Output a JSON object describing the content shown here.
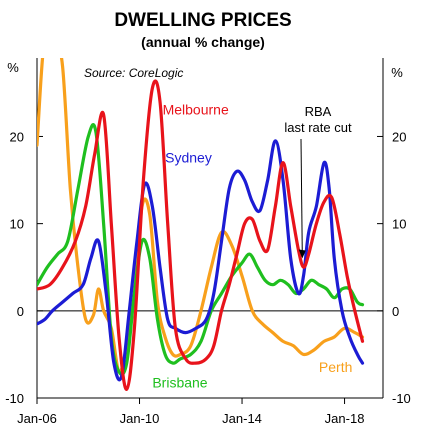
{
  "chart_data": {
    "type": "line",
    "title": "DWELLING PRICES",
    "subtitle": "(annual % change)",
    "left_unit": "%",
    "right_unit": "%",
    "source": "Source: CoreLogic",
    "ylim": [
      -10,
      29
    ],
    "y_ticks": [
      -10,
      0,
      10,
      20
    ],
    "y_tick_labels": [
      "-10",
      "0",
      "10",
      "20"
    ],
    "x_ticks": [
      2006,
      2010,
      2014,
      2018
    ],
    "x_tick_labels": [
      "Jan-06",
      "Jan-10",
      "Jan-14",
      "Jan-18"
    ],
    "xlim": [
      2006.0,
      2019.5
    ],
    "grid": "none",
    "reference_line": 0,
    "annotation": {
      "lines": [
        "RBA",
        "last rate cut"
      ],
      "x": 2016.35,
      "y": 6.0
    },
    "series": [
      {
        "name": "Melbourne",
        "color": "#e8131b",
        "x": [
          2006.0,
          2006.5,
          2007.0,
          2007.5,
          2007.9,
          2008.25,
          2008.6,
          2008.9,
          2009.2,
          2009.5,
          2009.8,
          2010.15,
          2010.5,
          2010.8,
          2011.1,
          2011.4,
          2011.8,
          2012.2,
          2012.6,
          2012.9,
          2013.2,
          2013.5,
          2013.8,
          2014.1,
          2014.4,
          2014.7,
          2015.0,
          2015.3,
          2015.6,
          2015.9,
          2016.2,
          2016.4,
          2016.6,
          2016.9,
          2017.2,
          2017.5,
          2017.8,
          2018.1,
          2018.4,
          2018.7
        ],
        "y": [
          2.5,
          3.0,
          5.0,
          8.0,
          12.0,
          18.0,
          22.5,
          10.0,
          -3.0,
          -9.0,
          -2.0,
          15.0,
          25.5,
          24.0,
          10.0,
          -2.0,
          -5.5,
          -6.0,
          -5.5,
          -4.0,
          0.0,
          3.0,
          6.5,
          10.0,
          10.5,
          8.0,
          7.0,
          12.0,
          17.0,
          12.0,
          7.0,
          5.0,
          6.5,
          10.0,
          12.5,
          13.0,
          9.0,
          4.0,
          0.0,
          -3.5
        ]
      },
      {
        "name": "Sydney",
        "color": "#1c1cd4",
        "x": [
          2006.0,
          2006.3,
          2006.6,
          2007.0,
          2007.4,
          2007.8,
          2008.1,
          2008.4,
          2008.7,
          2009.0,
          2009.3,
          2009.6,
          2009.9,
          2010.2,
          2010.5,
          2010.8,
          2011.1,
          2011.4,
          2011.8,
          2012.2,
          2012.6,
          2012.9,
          2013.2,
          2013.5,
          2013.8,
          2014.1,
          2014.4,
          2014.7,
          2015.0,
          2015.3,
          2015.6,
          2015.9,
          2016.2,
          2016.4,
          2016.6,
          2016.9,
          2017.2,
          2017.4,
          2017.6,
          2017.9,
          2018.2,
          2018.5,
          2018.7
        ],
        "y": [
          -1.5,
          -1.0,
          0.0,
          1.0,
          2.0,
          3.0,
          6.0,
          8.0,
          2.0,
          -6.0,
          -7.5,
          0.0,
          8.0,
          14.5,
          12.0,
          5.0,
          -1.0,
          -2.0,
          -2.5,
          -2.0,
          -1.0,
          2.0,
          8.0,
          14.0,
          16.0,
          15.0,
          12.5,
          11.5,
          15.0,
          19.5,
          15.0,
          6.0,
          2.0,
          4.0,
          9.0,
          12.0,
          17.0,
          14.0,
          6.0,
          0.0,
          -3.0,
          -5.0,
          -6.0
        ]
      },
      {
        "name": "Brisbane",
        "color": "#1fbf1f",
        "x": [
          2006.0,
          2006.4,
          2006.8,
          2007.2,
          2007.6,
          2008.0,
          2008.3,
          2008.6,
          2008.9,
          2009.2,
          2009.5,
          2009.8,
          2010.1,
          2010.4,
          2010.7,
          2011.0,
          2011.3,
          2011.6,
          2012.0,
          2012.4,
          2012.8,
          2013.2,
          2013.6,
          2014.0,
          2014.3,
          2014.6,
          2014.9,
          2015.2,
          2015.5,
          2015.8,
          2016.1,
          2016.4,
          2016.7,
          2017.0,
          2017.3,
          2017.6,
          2017.9,
          2018.2,
          2018.5,
          2018.7
        ],
        "y": [
          3.0,
          5.0,
          6.5,
          8.0,
          14.0,
          20.0,
          20.5,
          10.0,
          -3.0,
          -7.0,
          -6.0,
          2.0,
          8.0,
          6.0,
          -1.0,
          -5.0,
          -6.0,
          -5.5,
          -5.0,
          -3.5,
          0.0,
          2.0,
          4.0,
          5.5,
          6.5,
          5.0,
          3.5,
          3.0,
          3.5,
          3.0,
          2.0,
          2.5,
          3.5,
          3.0,
          2.5,
          1.5,
          2.5,
          2.5,
          1.0,
          0.7
        ]
      },
      {
        "name": "Perth",
        "color": "#f8a01c",
        "x": [
          2006.0,
          2006.25,
          2006.5,
          2006.75,
          2007.0,
          2007.3,
          2007.6,
          2007.9,
          2008.2,
          2008.4,
          2008.6,
          2008.9,
          2009.2,
          2009.5,
          2009.8,
          2010.1,
          2010.4,
          2010.7,
          2011.0,
          2011.3,
          2011.6,
          2012.0,
          2012.4,
          2012.8,
          2013.2,
          2013.6,
          2014.0,
          2014.4,
          2014.8,
          2015.2,
          2015.6,
          2016.0,
          2016.4,
          2016.8,
          2017.2,
          2017.6,
          2018.0,
          2018.4,
          2018.7
        ],
        "y": [
          19.0,
          30.0,
          30.0,
          30.0,
          28.0,
          14.0,
          5.0,
          -1.0,
          -0.5,
          2.5,
          0.0,
          -2.0,
          -7.0,
          -4.0,
          2.0,
          12.0,
          11.0,
          1.0,
          -3.0,
          -5.0,
          -5.0,
          -4.0,
          0.0,
          5.0,
          9.0,
          7.5,
          4.0,
          0.0,
          -1.5,
          -2.5,
          -3.5,
          -4.0,
          -5.0,
          -4.5,
          -3.5,
          -3.0,
          -2.0,
          -2.5,
          -3.0
        ]
      }
    ],
    "series_labels": [
      {
        "series": "Melbourne",
        "x": 2010.9,
        "y": 22.5
      },
      {
        "series": "Sydney",
        "x": 2011.0,
        "y": 17.0
      },
      {
        "series": "Brisbane",
        "x": 2010.5,
        "y": -8.8
      },
      {
        "series": "Perth",
        "x": 2017.0,
        "y": -7.0
      }
    ]
  }
}
